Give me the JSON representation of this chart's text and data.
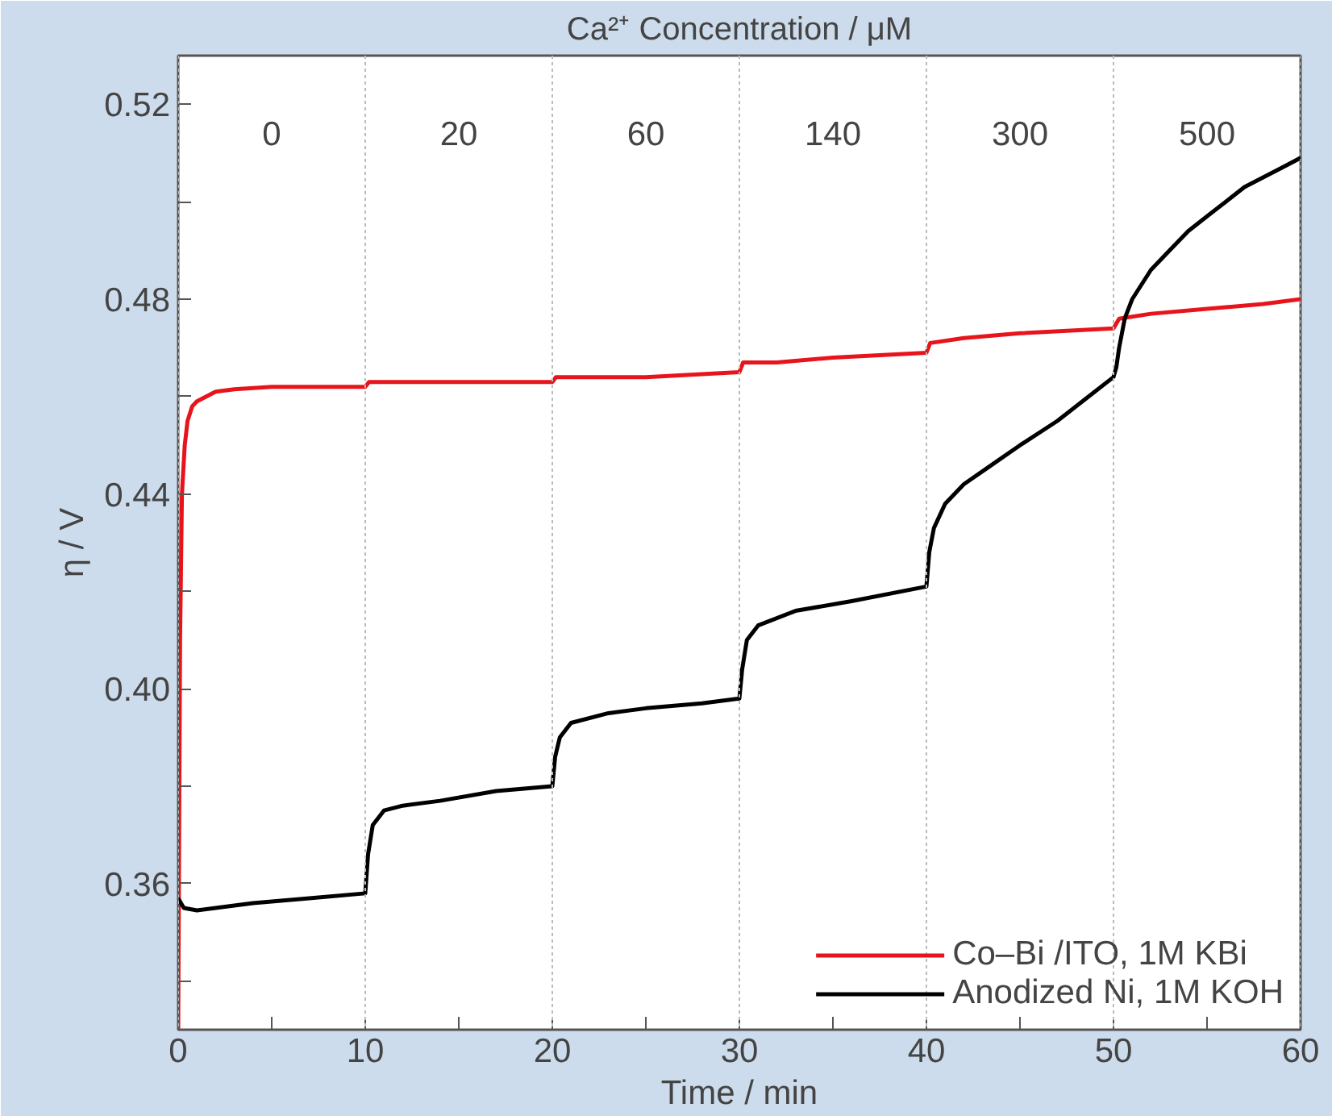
{
  "chart_data": {
    "type": "line",
    "title": "Ca²⁺ Concentration / μM",
    "xlabel": "Time / min",
    "ylabel": "η / V",
    "x": [
      0,
      0.05,
      0.1,
      0.2,
      0.35,
      0.5,
      0.75,
      1,
      1.5,
      2,
      3,
      5,
      7,
      10,
      10.2,
      12,
      15,
      20,
      20.2,
      22,
      25,
      30,
      30.2,
      32,
      35,
      40,
      40.2,
      42,
      45,
      50,
      50.3,
      52,
      55,
      58,
      60
    ],
    "series": [
      {
        "name": "Co–Bi /ITO, 1M KBi",
        "color": "#e8141c",
        "values": [
          0.33,
          0.37,
          0.41,
          0.44,
          0.45,
          0.455,
          0.458,
          0.459,
          0.46,
          0.461,
          0.4615,
          0.462,
          0.462,
          0.462,
          0.463,
          0.463,
          0.463,
          0.463,
          0.464,
          0.464,
          0.464,
          0.465,
          0.467,
          0.467,
          0.468,
          0.469,
          0.471,
          0.472,
          0.473,
          0.474,
          0.476,
          0.477,
          0.478,
          0.479,
          0.48
        ]
      },
      {
        "name": "Anodized Ni, 1M KOH",
        "color": "#000000",
        "x": [
          0,
          0.3,
          1,
          2,
          4,
          7,
          10,
          10.15,
          10.4,
          11,
          12,
          14,
          17,
          20,
          20.15,
          20.4,
          21,
          23,
          25,
          28,
          30,
          30.15,
          30.4,
          31,
          33,
          36,
          40,
          40.15,
          40.4,
          41,
          42,
          43.5,
          45,
          47,
          49,
          50,
          50.15,
          50.3,
          50.6,
          51,
          52,
          53,
          54,
          55,
          56,
          57,
          58,
          59,
          60
        ],
        "values": [
          0.357,
          0.355,
          0.3545,
          0.355,
          0.356,
          0.357,
          0.358,
          0.366,
          0.372,
          0.375,
          0.376,
          0.377,
          0.379,
          0.38,
          0.386,
          0.39,
          0.393,
          0.395,
          0.396,
          0.397,
          0.398,
          0.404,
          0.41,
          0.413,
          0.416,
          0.418,
          0.421,
          0.428,
          0.433,
          0.438,
          0.442,
          0.446,
          0.45,
          0.455,
          0.461,
          0.464,
          0.466,
          0.47,
          0.476,
          0.48,
          0.486,
          0.49,
          0.494,
          0.497,
          0.5,
          0.503,
          0.505,
          0.507,
          0.509
        ]
      }
    ],
    "annotations": [
      "0",
      "20",
      "60",
      "140",
      "300",
      "500"
    ],
    "xlim": [
      0,
      60
    ],
    "ylim": [
      0.33,
      0.53
    ],
    "xticks": [
      0,
      {
        "value": 5,
        "label": null
      },
      10,
      {
        "value": 15,
        "label": null
      },
      20,
      {
        "value": 25,
        "label": null
      },
      30,
      {
        "value": 35,
        "label": null
      },
      40,
      {
        "value": 45,
        "label": null
      },
      50,
      {
        "value": 55,
        "label": null
      },
      60
    ],
    "yticks": [
      {
        "value": 0.34,
        "label": null
      },
      {
        "value": 0.36,
        "label": "0.36"
      },
      {
        "value": 0.38,
        "label": null
      },
      {
        "value": 0.4,
        "label": "0.40"
      },
      {
        "value": 0.42,
        "label": null
      },
      {
        "value": 0.44,
        "label": "0.44"
      },
      {
        "value": 0.46,
        "label": null
      },
      {
        "value": 0.48,
        "label": "0.48"
      },
      {
        "value": 0.5,
        "label": null
      },
      {
        "value": 0.52,
        "label": "0.52"
      }
    ],
    "grid": "x",
    "legend": "bottom right",
    "line_style": "solid",
    "marker": "none"
  }
}
